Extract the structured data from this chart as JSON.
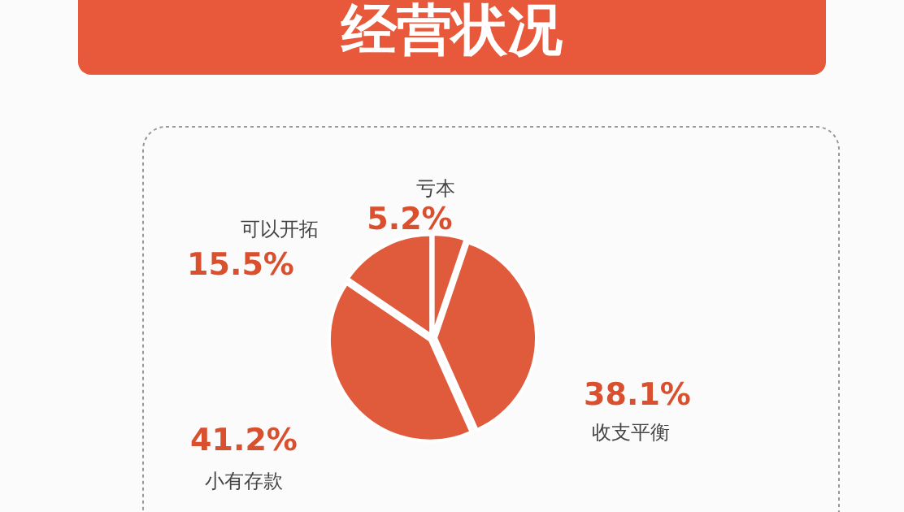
{
  "chart_data": {
    "type": "pie",
    "title": "经营状况",
    "categories": [
      "亏本",
      "收支平衡",
      "小有存款",
      "可以开拓"
    ],
    "values": [
      5.2,
      38.1,
      41.2,
      15.5
    ],
    "colors": [
      "#e05a3c",
      "#e05a3c",
      "#e05a3c",
      "#e05a3c"
    ],
    "value_labels": [
      "5.2%",
      "38.1%",
      "41.2%",
      "15.5%"
    ]
  }
}
